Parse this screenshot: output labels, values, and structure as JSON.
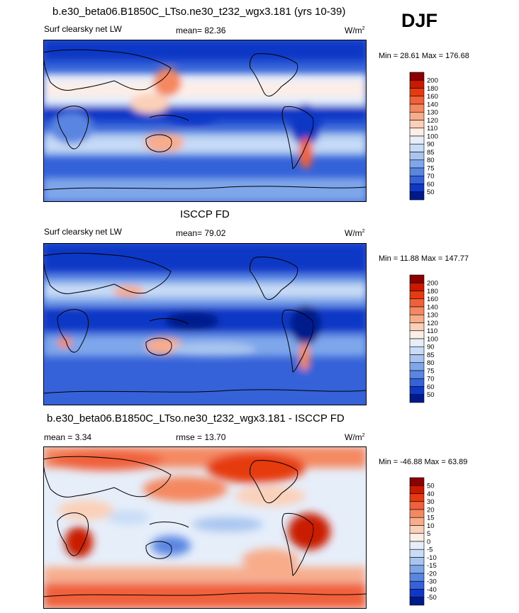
{
  "season": "DJF",
  "panels": [
    {
      "id": "model",
      "title": "b.e30_beta06.B1850C_LTso.ne30_t232_wgx3.181 (yrs 10-39)",
      "left_label": "Surf clearsky net LW",
      "center_label": "mean=  82.36",
      "units_base": "W/m",
      "units_exp": "2",
      "minmax": "Min =  28.61 Max = 176.68",
      "colorbar": {
        "levels": [
          "200",
          "180",
          "160",
          "140",
          "130",
          "120",
          "110",
          "100",
          "90",
          "85",
          "80",
          "75",
          "70",
          "60",
          "50"
        ],
        "colors": [
          "#8b0000",
          "#c91a00",
          "#e63a10",
          "#f0603a",
          "#f48860",
          "#f8ac8a",
          "#fbd0b8",
          "#fdeee6",
          "#e6eefa",
          "#c8dcf6",
          "#a8c4ef",
          "#7ea6ea",
          "#5a86e2",
          "#3462d8",
          "#1038c6",
          "#001a8c"
        ]
      }
    },
    {
      "id": "obs",
      "title": "ISCCP FD",
      "left_label": "Surf clearsky net LW",
      "center_label": "mean=  79.02",
      "units_base": "W/m",
      "units_exp": "2",
      "minmax": "Min =  11.88 Max = 147.77",
      "colorbar": {
        "levels": [
          "200",
          "180",
          "160",
          "140",
          "130",
          "120",
          "110",
          "100",
          "90",
          "85",
          "80",
          "75",
          "70",
          "60",
          "50"
        ],
        "colors": [
          "#8b0000",
          "#c91a00",
          "#e63a10",
          "#f0603a",
          "#f48860",
          "#f8ac8a",
          "#fbd0b8",
          "#fdeee6",
          "#e6eefa",
          "#c8dcf6",
          "#a8c4ef",
          "#7ea6ea",
          "#5a86e2",
          "#3462d8",
          "#1038c6",
          "#001a8c"
        ]
      }
    },
    {
      "id": "diff",
      "title": "b.e30_beta06.B1850C_LTso.ne30_t232_wgx3.181 - ISCCP FD",
      "left_label": "mean =   3.34",
      "center_label": "rmse =  13.70",
      "units_base": "W/m",
      "units_exp": "2",
      "minmax": "Min = -46.88 Max =  63.89",
      "colorbar": {
        "levels": [
          "50",
          "40",
          "30",
          "20",
          "15",
          "10",
          "5",
          "0",
          "-5",
          "-10",
          "-15",
          "-20",
          "-30",
          "-40",
          "-50"
        ],
        "colors": [
          "#8b0000",
          "#c91a00",
          "#e63a10",
          "#f0603a",
          "#f48860",
          "#f8ac8a",
          "#fbd0b8",
          "#fdeee6",
          "#e6eefa",
          "#c8dcf6",
          "#a8c4ef",
          "#7ea6ea",
          "#5a86e2",
          "#3462d8",
          "#1038c6",
          "#001a8c"
        ]
      }
    }
  ]
}
